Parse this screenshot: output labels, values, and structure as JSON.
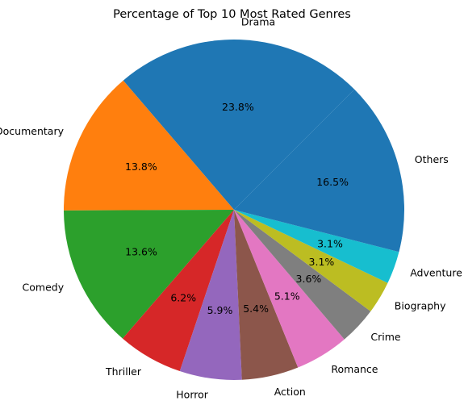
{
  "chart_data": {
    "type": "pie",
    "title": "Percentage of Top 10 Most Rated Genres",
    "start_angle_deg": 45,
    "direction": "counterclockwise",
    "slices": [
      {
        "label": "Drama",
        "value": 23.8,
        "value_label": "23.8%",
        "color": "#1f77b4"
      },
      {
        "label": "Documentary",
        "value": 13.8,
        "value_label": "13.8%",
        "color": "#ff7f0e"
      },
      {
        "label": "Comedy",
        "value": 13.6,
        "value_label": "13.6%",
        "color": "#2ca02c"
      },
      {
        "label": "Thriller",
        "value": 6.2,
        "value_label": "6.2%",
        "color": "#d62728"
      },
      {
        "label": "Horror",
        "value": 5.9,
        "value_label": "5.9%",
        "color": "#9467bd"
      },
      {
        "label": "Action",
        "value": 5.4,
        "value_label": "5.4%",
        "color": "#8c564b"
      },
      {
        "label": "Romance",
        "value": 5.1,
        "value_label": "5.1%",
        "color": "#e377c2"
      },
      {
        "label": "Crime",
        "value": 3.6,
        "value_label": "3.6%",
        "color": "#7f7f7f"
      },
      {
        "label": "Biography",
        "value": 3.1,
        "value_label": "3.1%",
        "color": "#bcbd22"
      },
      {
        "label": "Adventure",
        "value": 3.1,
        "value_label": "3.1%",
        "color": "#17becf"
      },
      {
        "label": "Others",
        "value": 16.5,
        "value_label": "16.5%",
        "color": "#1f77b4"
      }
    ]
  }
}
